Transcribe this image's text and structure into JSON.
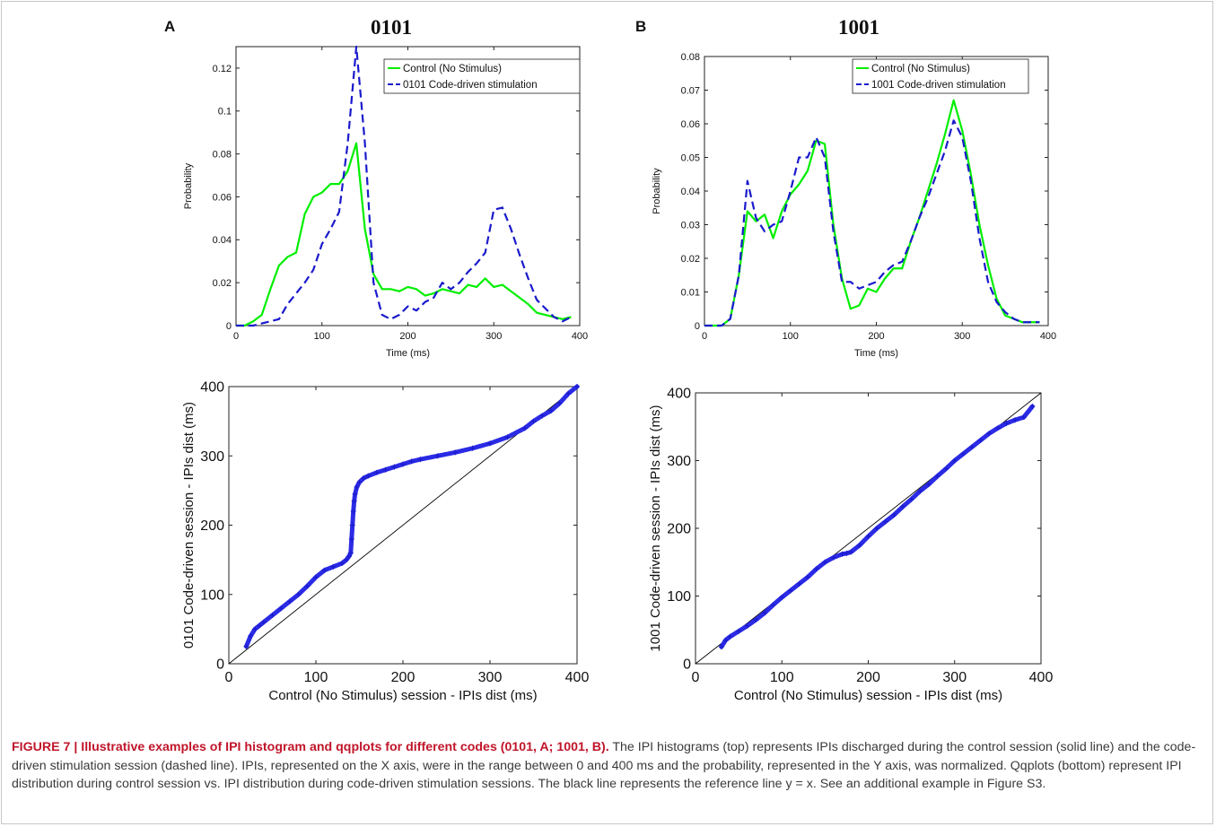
{
  "panels": [
    {
      "letter": "A",
      "title": "0101"
    },
    {
      "letter": "B",
      "title": "1001"
    }
  ],
  "chart_data": [
    {
      "type": "line",
      "ylabel": "Probability",
      "xlabel": "Time (ms)",
      "xlim": [
        0,
        400
      ],
      "ylim": [
        0,
        0.13
      ],
      "xticks": [
        "0",
        "100",
        "200",
        "300",
        "400"
      ],
      "yticks": [
        "0",
        "0.02",
        "0.04",
        "0.06",
        "0.08",
        "0.1",
        "0.12"
      ],
      "legend_placement": "top-right",
      "grid": false,
      "series": [
        {
          "name": "Control (No Stimulus)",
          "color": "#00ee00",
          "dash": "solid",
          "x": [
            0,
            10,
            20,
            30,
            40,
            50,
            60,
            70,
            80,
            90,
            100,
            110,
            120,
            130,
            140,
            150,
            160,
            170,
            180,
            190,
            200,
            210,
            220,
            230,
            240,
            250,
            260,
            270,
            280,
            290,
            300,
            310,
            320,
            330,
            340,
            350,
            360,
            370,
            380,
            390
          ],
          "y": [
            0,
            0,
            0.002,
            0.005,
            0.017,
            0.028,
            0.032,
            0.034,
            0.052,
            0.06,
            0.062,
            0.066,
            0.066,
            0.072,
            0.085,
            0.045,
            0.024,
            0.017,
            0.017,
            0.016,
            0.018,
            0.017,
            0.014,
            0.015,
            0.017,
            0.016,
            0.015,
            0.019,
            0.018,
            0.022,
            0.018,
            0.019,
            0.016,
            0.013,
            0.01,
            0.006,
            0.005,
            0.004,
            0.003,
            0.004
          ]
        },
        {
          "name": "0101 Code-driven stimulation",
          "color": "#1a1acc",
          "dash": "dashed",
          "x": [
            0,
            10,
            20,
            30,
            40,
            50,
            60,
            70,
            80,
            90,
            100,
            110,
            120,
            130,
            140,
            150,
            160,
            170,
            180,
            190,
            200,
            210,
            220,
            230,
            240,
            250,
            260,
            270,
            280,
            290,
            300,
            310,
            320,
            330,
            340,
            350,
            360,
            370,
            380,
            390
          ],
          "y": [
            0,
            0,
            0,
            0.001,
            0.002,
            0.003,
            0.01,
            0.015,
            0.02,
            0.026,
            0.038,
            0.045,
            0.053,
            0.085,
            0.13,
            0.085,
            0.02,
            0.005,
            0.003,
            0.005,
            0.009,
            0.007,
            0.011,
            0.013,
            0.02,
            0.017,
            0.02,
            0.025,
            0.029,
            0.034,
            0.054,
            0.055,
            0.045,
            0.033,
            0.022,
            0.012,
            0.008,
            0.004,
            0.002,
            0.004
          ]
        }
      ]
    },
    {
      "type": "line",
      "ylabel": "Probability",
      "xlabel": "Time (ms)",
      "xlim": [
        0,
        400
      ],
      "ylim": [
        0,
        0.08
      ],
      "xticks": [
        "0",
        "100",
        "200",
        "300",
        "400"
      ],
      "yticks": [
        "0",
        "0.01",
        "0.02",
        "0.03",
        "0.04",
        "0.05",
        "0.06",
        "0.07",
        "0.08"
      ],
      "legend_placement": "top-right",
      "grid": false,
      "series": [
        {
          "name": "Control (No Stimulus)",
          "color": "#00ee00",
          "dash": "solid",
          "x": [
            0,
            10,
            20,
            30,
            40,
            50,
            60,
            70,
            80,
            90,
            100,
            110,
            120,
            130,
            140,
            150,
            160,
            170,
            180,
            190,
            200,
            210,
            220,
            230,
            240,
            250,
            260,
            270,
            280,
            290,
            300,
            310,
            320,
            330,
            340,
            350,
            360,
            370,
            380,
            390
          ],
          "y": [
            0,
            0,
            0,
            0.002,
            0.015,
            0.034,
            0.031,
            0.033,
            0.026,
            0.034,
            0.039,
            0.042,
            0.046,
            0.055,
            0.054,
            0.03,
            0.014,
            0.005,
            0.006,
            0.011,
            0.01,
            0.014,
            0.017,
            0.017,
            0.025,
            0.032,
            0.04,
            0.048,
            0.057,
            0.067,
            0.058,
            0.045,
            0.03,
            0.018,
            0.008,
            0.003,
            0.002,
            0.001,
            0.001,
            0.001
          ]
        },
        {
          "name": "1001 Code-driven stimulation",
          "color": "#1a1acc",
          "dash": "dashed",
          "x": [
            0,
            10,
            20,
            30,
            40,
            50,
            60,
            70,
            80,
            90,
            100,
            110,
            120,
            130,
            140,
            150,
            160,
            170,
            180,
            190,
            200,
            210,
            220,
            230,
            240,
            250,
            260,
            270,
            280,
            290,
            300,
            310,
            320,
            330,
            340,
            350,
            360,
            370,
            380,
            390
          ],
          "y": [
            0,
            0,
            0,
            0.002,
            0.015,
            0.043,
            0.032,
            0.028,
            0.03,
            0.031,
            0.04,
            0.05,
            0.05,
            0.056,
            0.05,
            0.028,
            0.013,
            0.013,
            0.011,
            0.012,
            0.013,
            0.016,
            0.018,
            0.019,
            0.025,
            0.032,
            0.038,
            0.045,
            0.052,
            0.061,
            0.056,
            0.043,
            0.026,
            0.013,
            0.007,
            0.004,
            0.002,
            0.001,
            0.001,
            0.001
          ]
        }
      ]
    },
    {
      "type": "scatter",
      "ylabel": "0101 Code-driven session - IPIs dist (ms)",
      "xlabel": "Control (No Stimulus) session - IPIs dist (ms)",
      "xlim": [
        0,
        400
      ],
      "ylim": [
        0,
        400
      ],
      "xticks": [
        "0",
        "100",
        "200",
        "300",
        "400"
      ],
      "yticks": [
        "0",
        "100",
        "200",
        "300",
        "400"
      ],
      "reference_line": "y = x",
      "grid": false,
      "quantiles": {
        "x": [
          20,
          25,
          30,
          35,
          40,
          50,
          60,
          70,
          80,
          90,
          100,
          110,
          120,
          130,
          135,
          138,
          140,
          141,
          142,
          143,
          144,
          145,
          147,
          150,
          155,
          160,
          170,
          180,
          190,
          200,
          210,
          220,
          240,
          260,
          280,
          300,
          320,
          340,
          350,
          360,
          370,
          380,
          390,
          400
        ],
        "y": [
          25,
          40,
          50,
          55,
          60,
          70,
          80,
          90,
          100,
          112,
          125,
          135,
          140,
          145,
          150,
          155,
          160,
          180,
          200,
          220,
          235,
          245,
          255,
          262,
          268,
          271,
          276,
          280,
          284,
          288,
          292,
          295,
          300,
          305,
          311,
          318,
          327,
          340,
          350,
          358,
          365,
          376,
          390,
          400
        ]
      }
    },
    {
      "type": "scatter",
      "ylabel": "1001 Code-driven session - IPIs dist (ms)",
      "xlabel": "Control (No Stimulus) session - IPIs dist (ms)",
      "xlim": [
        0,
        400
      ],
      "ylim": [
        0,
        400
      ],
      "xticks": [
        "0",
        "100",
        "200",
        "300",
        "400"
      ],
      "yticks": [
        "0",
        "100",
        "200",
        "300",
        "400"
      ],
      "reference_line": "y = x",
      "grid": false,
      "quantiles": {
        "x": [
          30,
          35,
          40,
          50,
          60,
          70,
          80,
          90,
          100,
          110,
          120,
          130,
          140,
          150,
          160,
          170,
          175,
          180,
          190,
          200,
          210,
          220,
          230,
          240,
          250,
          260,
          270,
          280,
          290,
          300,
          310,
          320,
          330,
          340,
          350,
          360,
          370,
          380,
          390
        ],
        "y": [
          25,
          35,
          40,
          48,
          56,
          65,
          75,
          87,
          98,
          108,
          118,
          128,
          140,
          150,
          157,
          162,
          163,
          165,
          175,
          188,
          200,
          210,
          220,
          232,
          243,
          255,
          265,
          277,
          288,
          300,
          310,
          320,
          330,
          340,
          348,
          355,
          360,
          364,
          380
        ]
      }
    }
  ],
  "caption": {
    "lead": "FIGURE 7 | Illustrative examples of IPI histogram and qqplots for different codes (0101, A; 1001, B).",
    "body": "The IPI histograms (top) represents IPIs discharged during the control session (solid line) and the code-driven stimulation session (dashed line). IPIs, represented on the X axis, were in the range between 0 and 400 ms and the probability, represented in the Y axis, was normalized. Qqplots (bottom) represent IPI distribution during control session vs. IPI distribution during code-driven stimulation sessions. The black line represents the reference line y = x. See an additional example in Figure S3."
  }
}
